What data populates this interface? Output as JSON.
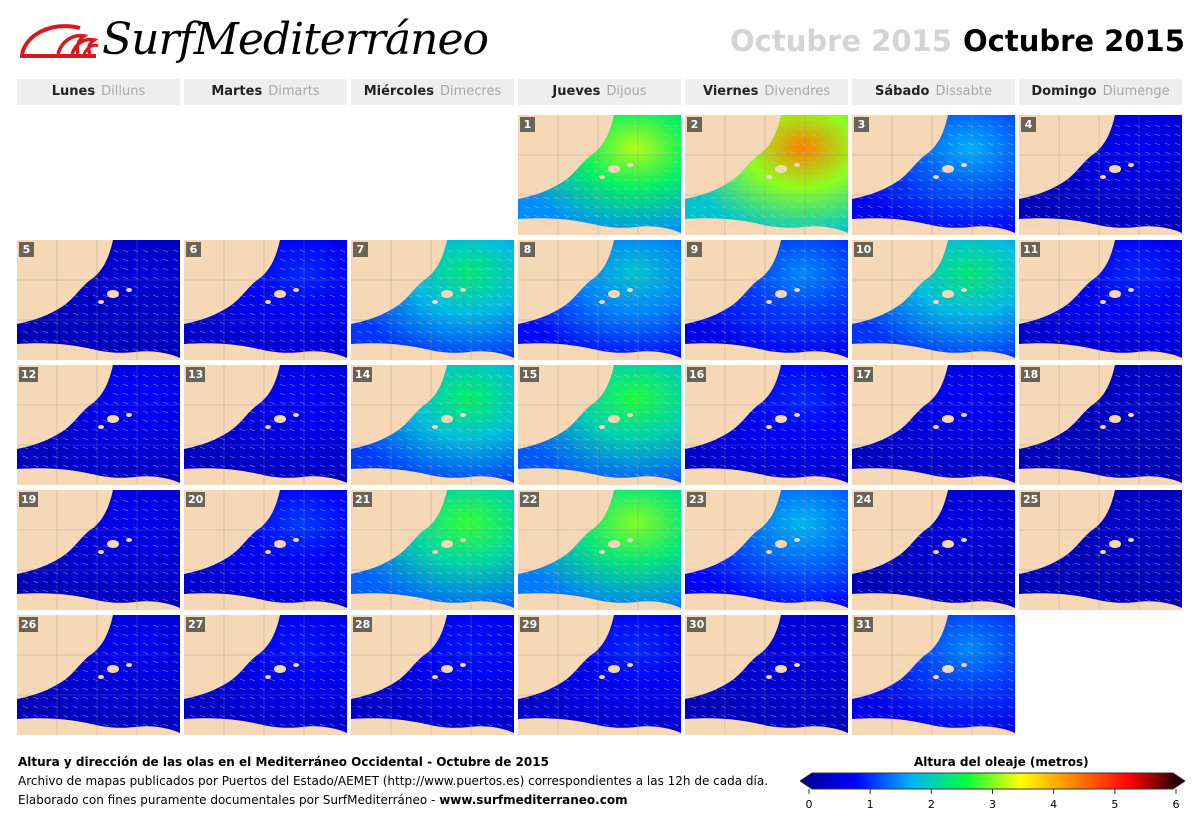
{
  "brand": {
    "name": "SurfMediterráneo"
  },
  "header": {
    "title_ghost": "Octubre 2015",
    "title": "Octubre 2015"
  },
  "weekdays": [
    {
      "es": "Lunes",
      "ca": "Dilluns"
    },
    {
      "es": "Martes",
      "ca": "Dimarts"
    },
    {
      "es": "Miércoles",
      "ca": "Dimecres"
    },
    {
      "es": "Jueves",
      "ca": "Dijous"
    },
    {
      "es": "Viernes",
      "ca": "Divendres"
    },
    {
      "es": "Sábado",
      "ca": "Dissabte"
    },
    {
      "es": "Domingo",
      "ca": "Diumenge"
    }
  ],
  "calendar": {
    "first_weekday_index": 3,
    "days": [
      {
        "day": "1",
        "wave_level": 3.6
      },
      {
        "day": "2",
        "wave_level": 4.6
      },
      {
        "day": "3",
        "wave_level": 1.8
      },
      {
        "day": "4",
        "wave_level": 0.8
      },
      {
        "day": "5",
        "wave_level": 0.6
      },
      {
        "day": "6",
        "wave_level": 1.1
      },
      {
        "day": "7",
        "wave_level": 2.6
      },
      {
        "day": "8",
        "wave_level": 2.1
      },
      {
        "day": "9",
        "wave_level": 1.6
      },
      {
        "day": "10",
        "wave_level": 2.6
      },
      {
        "day": "11",
        "wave_level": 1.1
      },
      {
        "day": "12",
        "wave_level": 0.9
      },
      {
        "day": "13",
        "wave_level": 0.9
      },
      {
        "day": "14",
        "wave_level": 2.7
      },
      {
        "day": "15",
        "wave_level": 3.0
      },
      {
        "day": "16",
        "wave_level": 1.1
      },
      {
        "day": "17",
        "wave_level": 0.9
      },
      {
        "day": "18",
        "wave_level": 0.5
      },
      {
        "day": "19",
        "wave_level": 0.8
      },
      {
        "day": "20",
        "wave_level": 1.2
      },
      {
        "day": "21",
        "wave_level": 3.1
      },
      {
        "day": "22",
        "wave_level": 3.4
      },
      {
        "day": "23",
        "wave_level": 1.9
      },
      {
        "day": "24",
        "wave_level": 0.7
      },
      {
        "day": "25",
        "wave_level": 0.5
      },
      {
        "day": "26",
        "wave_level": 0.8
      },
      {
        "day": "27",
        "wave_level": 1.0
      },
      {
        "day": "28",
        "wave_level": 1.0
      },
      {
        "day": "29",
        "wave_level": 1.1
      },
      {
        "day": "30",
        "wave_level": 0.7
      },
      {
        "day": "31",
        "wave_level": 1.6
      }
    ]
  },
  "colors": {
    "land": "#f6d8b6",
    "scale": [
      "#00008b",
      "#0000ff",
      "#00b0ff",
      "#00ff40",
      "#ffff00",
      "#ff8000",
      "#ff0000",
      "#000000"
    ]
  },
  "footer": {
    "title": "Altura y dirección de las olas en el Mediterráneo Occidental - Octubre de 2015",
    "line1": "Archivo de mapas publicados por Puertos del Estado/AEMET (http://www.puertos.es) correspondientes a las 12h de cada día.",
    "line2_prefix": "Elaborado con fines puramente documentales por SurfMediterráneo - ",
    "line2_link": "www.surfmediterraneo.com"
  },
  "legend": {
    "title": "Altura del oleaje (metros)",
    "ticks": [
      "0",
      "1",
      "2",
      "3",
      "4",
      "5",
      "6"
    ]
  }
}
